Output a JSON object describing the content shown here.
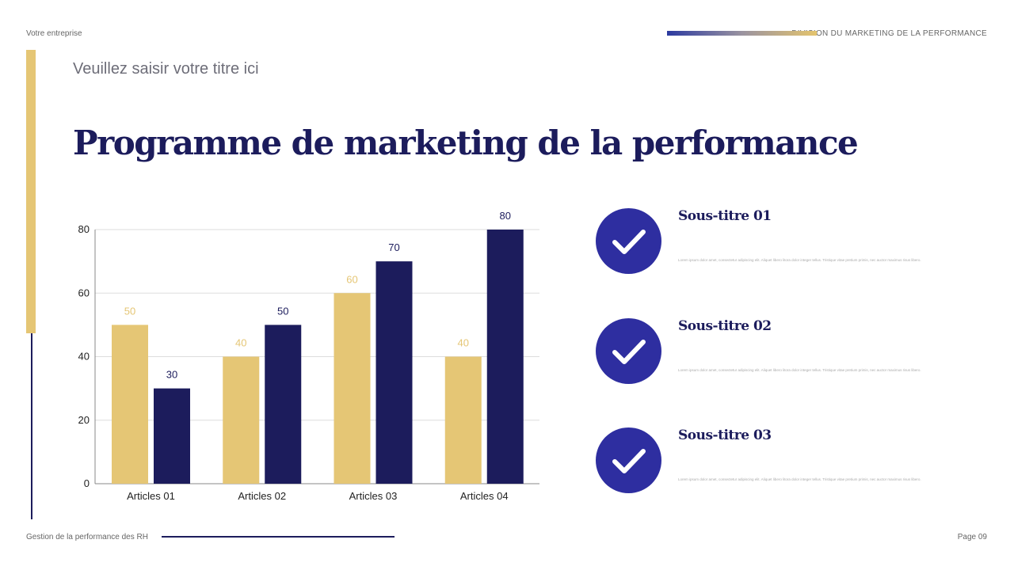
{
  "header": {
    "company": "Votre entreprise",
    "division": "DIVISION DU MARKETING DE LA PERFORMANCE"
  },
  "subtitle": "Veuillez saisir votre titre ici",
  "title": "Programme de marketing de la performance",
  "footer": {
    "left": "Gestion de la performance des RH",
    "page": "Page 09"
  },
  "colors": {
    "gold": "#e5c675",
    "navy": "#1c1c5c",
    "circle": "#2e2ea0"
  },
  "items": [
    {
      "icon": "check-icon",
      "title": "Sous-titre 01",
      "text": "Lorem ipsum dolor amet, consectetur adipiscing elit. Aliquet libero litora dolor integer tellus. Tristique vitae pretium primis, nec auctor maximus risus libero."
    },
    {
      "icon": "check-icon",
      "title": "Sous-titre 02",
      "text": "Lorem ipsum dolor amet, consectetur adipiscing elit. Aliquet libero litora dolor integer tellus. Tristique vitae pretium primis, nec auctor maximus risus libero."
    },
    {
      "icon": "check-icon",
      "title": "Sous-titre 03",
      "text": "Lorem ipsum dolor amet, consectetur adipiscing elit. Aliquet libero litora dolor integer tellus. Tristique vitae pretium primis, nec auctor maximus risus libero."
    }
  ],
  "chart_data": {
    "type": "bar",
    "categories": [
      "Articles 01",
      "Articles 02",
      "Articles 03",
      "Articles 04"
    ],
    "series": [
      {
        "values": [
          50,
          40,
          60,
          40
        ],
        "color": "#e5c675"
      },
      {
        "values": [
          30,
          50,
          70,
          80
        ],
        "color": "#1c1c5c"
      }
    ],
    "ylim": [
      0,
      80
    ],
    "yticks": [
      0,
      20,
      40,
      60,
      80
    ],
    "grid": true,
    "data_labels": true
  }
}
